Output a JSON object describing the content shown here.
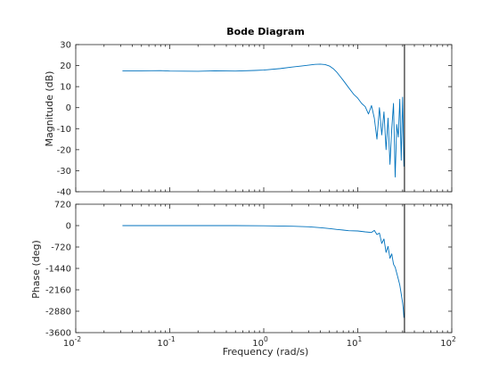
{
  "chart_data": [
    {
      "type": "line",
      "panel": "magnitude",
      "title": "Bode Diagram",
      "ylabel": "Magnitude (dB)",
      "xscale": "log",
      "xlim": [
        0.01,
        100
      ],
      "ylim": [
        -40,
        30
      ],
      "yticks": [
        30,
        20,
        10,
        0,
        -10,
        -20,
        -30,
        -40
      ],
      "grid": false,
      "series_color": "#0072bd",
      "vertical_marker_x": 31.4,
      "series": [
        {
          "x": [
            0.0314,
            0.05,
            0.08,
            0.1,
            0.2,
            0.3,
            0.5,
            0.8,
            1.0,
            1.5,
            2.0,
            2.5,
            3.0,
            3.5,
            4.0,
            4.5,
            5.0,
            5.5,
            6.0,
            7.0,
            8.0,
            9.0,
            10.0,
            11.0,
            12.0,
            13.0,
            14.0,
            15.0,
            16.0,
            17.0,
            18.0,
            19.0,
            20.0,
            21.0,
            22.0,
            23.0,
            24.0,
            25.0,
            26.0,
            27.0,
            28.0,
            29.0,
            30.0,
            31.0
          ],
          "values": [
            17.5,
            17.5,
            17.6,
            17.4,
            17.3,
            17.5,
            17.4,
            17.7,
            17.9,
            18.6,
            19.3,
            19.8,
            20.2,
            20.6,
            20.7,
            20.5,
            19.8,
            18.5,
            16.8,
            13.0,
            9.5,
            6.5,
            4.5,
            2.0,
            0.5,
            -3.0,
            1.0,
            -5.0,
            -15.0,
            0.0,
            -13.0,
            -2.0,
            -20.0,
            -5.0,
            -27.0,
            -10.0,
            2.0,
            -33.0,
            -8.0,
            -14.0,
            4.0,
            -25.0,
            5.0,
            -28.0
          ]
        }
      ]
    },
    {
      "type": "line",
      "panel": "phase",
      "xlabel": "Frequency  (rad/s)",
      "ylabel": "Phase (deg)",
      "xscale": "log",
      "xlim": [
        0.01,
        100
      ],
      "ylim": [
        -3600,
        720
      ],
      "yticks": [
        720,
        0,
        -720,
        -1440,
        -2160,
        -2880,
        -3600
      ],
      "xticks": [
        0.01,
        0.1,
        1,
        10,
        100
      ],
      "xtick_labels": [
        {
          "base": "10",
          "exp": "-2"
        },
        {
          "base": "10",
          "exp": "-1"
        },
        {
          "base": "10",
          "exp": "0"
        },
        {
          "base": "10",
          "exp": "1"
        },
        {
          "base": "10",
          "exp": "2"
        }
      ],
      "grid": false,
      "series_color": "#0072bd",
      "vertical_marker_x": 31.4,
      "series": [
        {
          "x": [
            0.0314,
            0.05,
            0.1,
            0.2,
            0.5,
            1.0,
            2.0,
            3.0,
            4.0,
            5.0,
            6.0,
            7.0,
            8.0,
            10.0,
            12.0,
            14.0,
            15.0,
            16.0,
            17.0,
            18.0,
            19.0,
            20.0,
            21.0,
            22.0,
            23.0,
            24.0,
            25.0,
            26.0,
            27.0,
            28.0,
            29.0,
            30.0,
            30.5,
            31.0
          ],
          "values": [
            0,
            0,
            0,
            0,
            0,
            -5,
            -20,
            -40,
            -70,
            -100,
            -130,
            -150,
            -170,
            -180,
            -210,
            -230,
            -160,
            -300,
            -250,
            -600,
            -450,
            -900,
            -700,
            -1100,
            -950,
            -1300,
            -1400,
            -1600,
            -1800,
            -2000,
            -2300,
            -2600,
            -2800,
            -3100
          ]
        }
      ]
    }
  ]
}
